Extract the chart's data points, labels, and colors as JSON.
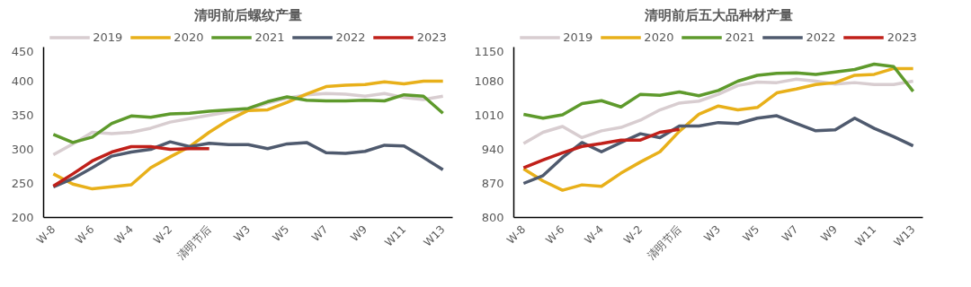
{
  "chart_data": [
    {
      "type": "line",
      "title": "清明前后螺纹产量",
      "categories": [
        "W-8",
        null,
        "W-6",
        null,
        "W-4",
        null,
        "W-2",
        null,
        "清明节后",
        null,
        "W3",
        null,
        "W5",
        null,
        "W7",
        null,
        "W9",
        null,
        "W11",
        null,
        "W13"
      ],
      "ylim": [
        200,
        450
      ],
      "yticks": [
        200,
        250,
        300,
        350,
        400,
        450
      ],
      "grid": false,
      "legend": "top",
      "series": [
        {
          "name": "2019",
          "color": "#d8cdd0",
          "values": [
            292,
            308,
            325,
            323,
            325,
            331,
            340,
            345,
            350,
            355,
            358,
            368,
            375,
            380,
            382,
            381,
            378,
            382,
            376,
            373,
            378
          ]
        },
        {
          "name": "2020",
          "color": "#e8b01a",
          "values": [
            264,
            249,
            242,
            245,
            248,
            273,
            289,
            304,
            325,
            343,
            357,
            358,
            369,
            381,
            392,
            394,
            395,
            399,
            396,
            400,
            400
          ]
        },
        {
          "name": "2021",
          "color": "#5e9a2c",
          "values": [
            322,
            310,
            318,
            338,
            349,
            347,
            352,
            353,
            356,
            358,
            360,
            370,
            377,
            372,
            371,
            371,
            372,
            371,
            380,
            378,
            353
          ]
        },
        {
          "name": "2022",
          "color": "#4f5a6e",
          "values": [
            245,
            257,
            273,
            290,
            296,
            300,
            311,
            304,
            309,
            307,
            307,
            301,
            308,
            310,
            295,
            294,
            297,
            306,
            305,
            288,
            270
          ]
        },
        {
          "name": "2023",
          "color": "#c0201a",
          "values": [
            246,
            264,
            283,
            296,
            304,
            304,
            300,
            301,
            301,
            null,
            null,
            null,
            null,
            null,
            null,
            null,
            null,
            null,
            null,
            null,
            null
          ]
        }
      ]
    },
    {
      "type": "line",
      "title": "清明前后五大品种材产量",
      "categories": [
        "W-8",
        null,
        "W-6",
        null,
        "W-4",
        null,
        "W-2",
        null,
        "清明节后",
        null,
        "W3",
        null,
        "W5",
        null,
        "W7",
        null,
        "W9",
        null,
        "W11",
        null,
        "W13"
      ],
      "ylim": [
        800,
        1150
      ],
      "yticks": [
        800,
        870,
        940,
        1010,
        1080,
        1150
      ],
      "grid": false,
      "legend": "top",
      "series": [
        {
          "name": "2019",
          "color": "#d8cdd0",
          "values": [
            952,
            975,
            987,
            964,
            978,
            985,
            1000,
            1021,
            1035,
            1039,
            1053,
            1071,
            1078,
            1077,
            1084,
            1080,
            1074,
            1077,
            1073,
            1073,
            1080
          ]
        },
        {
          "name": "2020",
          "color": "#e8b01a",
          "values": [
            900,
            875,
            856,
            867,
            864,
            891,
            914,
            935,
            977,
            1012,
            1029,
            1021,
            1026,
            1056,
            1064,
            1073,
            1077,
            1092,
            1094,
            1106,
            1106
          ]
        },
        {
          "name": "2021",
          "color": "#5e9a2c",
          "values": [
            1012,
            1004,
            1011,
            1034,
            1040,
            1027,
            1053,
            1051,
            1058,
            1050,
            1061,
            1080,
            1092,
            1096,
            1097,
            1094,
            1099,
            1104,
            1115,
            1110,
            1059
          ]
        },
        {
          "name": "2022",
          "color": "#4f5a6e",
          "values": [
            870,
            886,
            923,
            954,
            935,
            954,
            972,
            964,
            988,
            988,
            995,
            993,
            1004,
            1009,
            993,
            978,
            980,
            1004,
            983,
            966,
            947
          ]
        },
        {
          "name": "2023",
          "color": "#c0201a",
          "values": [
            902,
            918,
            933,
            946,
            952,
            959,
            959,
            975,
            981,
            null,
            null,
            null,
            null,
            null,
            null,
            null,
            null,
            null,
            null,
            null,
            null
          ]
        }
      ]
    }
  ]
}
